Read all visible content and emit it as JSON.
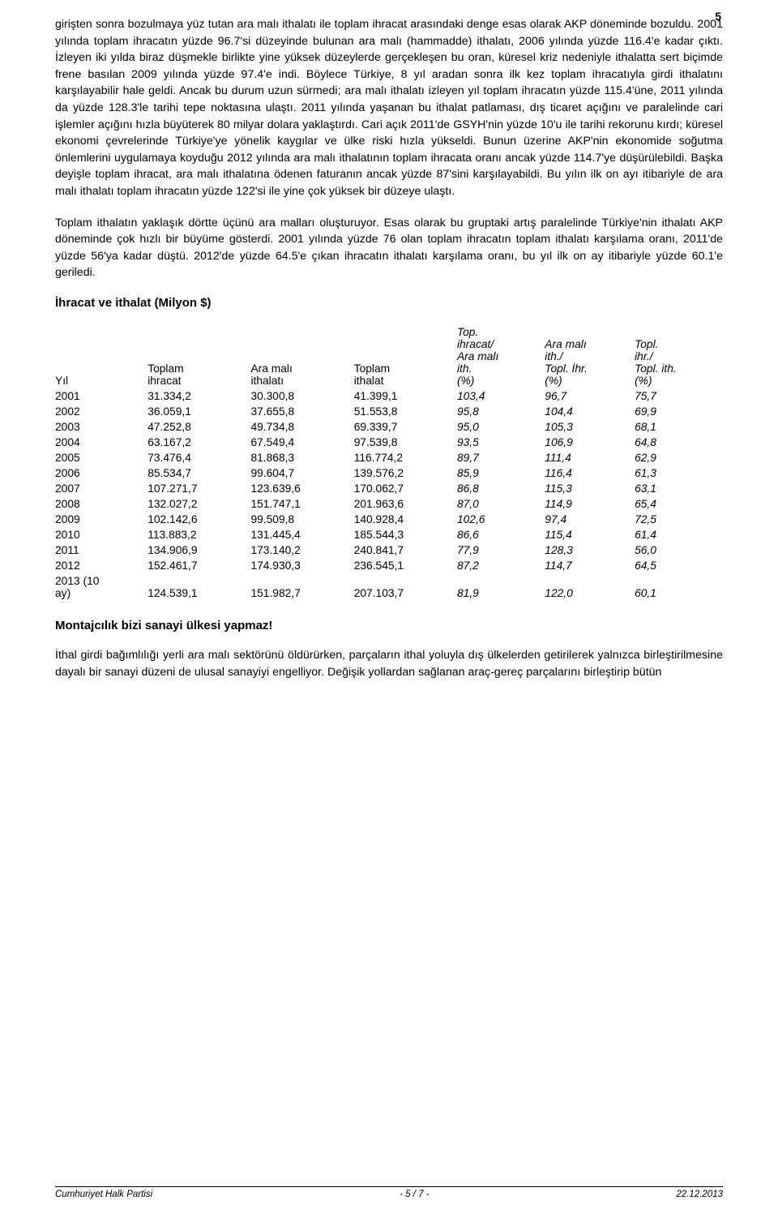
{
  "page_number": "5",
  "paragraphs": {
    "p1": "girişten sonra bozulmaya yüz tutan ara malı ithalatı ile toplam ihracat arasındaki denge esas olarak AKP döneminde bozuldu. 2001 yılında toplam ihracatın yüzde 96.7'si düzeyinde bulunan ara malı (hammadde) ithalatı, 2006 yılında yüzde 116.4'e kadar çıktı. İzleyen iki yılda biraz düşmekle birlikte yine yüksek düzeylerde gerçekleşen bu oran, küresel kriz nedeniyle ithalatta sert biçimde frene basılan 2009 yılında yüzde 97.4'e indi. Böylece Türkiye, 8 yıl aradan sonra ilk kez toplam ihracatıyla girdi ithalatını karşılayabilir hale geldi. Ancak bu durum uzun sürmedi; ara malı ithalatı izleyen yıl toplam ihracatın yüzde 115.4'üne, 2011 yılında da yüzde 128.3'le tarihi tepe noktasına ulaştı. 2011 yılında yaşanan bu ithalat patlaması, dış ticaret açığını ve paralelinde cari işlemler açığını hızla büyüterek 80 milyar dolara yaklaştırdı. Cari açık 2011'de GSYH'nin yüzde 10'u ile tarihi rekorunu kırdı; küresel ekonomi çevrelerinde Türkiye'ye yönelik kaygılar ve ülke riski hızla yükseldi. Bunun üzerine AKP'nin ekonomide soğutma önlemlerini uygulamaya koyduğu 2012 yılında ara malı ithalatının toplam ihracata oranı ancak yüzde 114.7'ye düşürülebildi. Başka deyişle toplam ihracat, ara malı ithalatına ödenen faturanın ancak yüzde 87'sini karşılayabildi. Bu yılın ilk on ayı itibariyle de ara malı ithalatı toplam ihracatın yüzde 122'si ile yine çok yüksek bir düzeye ulaştı.",
    "p2": "Toplam ithalatın yaklaşık dörtte üçünü ara malları oluşturuyor. Esas olarak bu gruptaki artış paralelinde Türkiye'nin ithalatı AKP döneminde çok hızlı bir büyüme gösterdi. 2001 yılında yüzde 76 olan toplam ihracatın toplam ithalatı karşılama oranı, 2011'de yüzde 56'ya kadar düştü. 2012'de yüzde 64.5'e çıkan ihracatın ithalatı karşılama oranı, bu yıl ilk on ay itibariyle yüzde 60.1'e geriledi.",
    "p4": "İthal girdi bağımlılığı yerli ara malı sektörünü öldürürken, parçaların ithal yoluyla dış ülkelerden getirilerek yalnızca birleştirilmesine dayalı bir sanayi düzeni de ulusal sanayiyi engelliyor. Değişik yollardan sağlanan araç-gereç parçalarını birleştirip bütün"
  },
  "table_title": "İhracat ve ithalat (Milyon $)",
  "subtitle": "Montajcılık bizi sanayi ülkesi yapmaz!",
  "table": {
    "headers": {
      "c0": "Yıl",
      "c1": "Toplam ihracat",
      "c2": "Ara malı ithalatı",
      "c3": "Toplam ithalat",
      "c4": "Top. ihracat/ Ara malı ith. (%)",
      "c5": "Ara malı ith./ Topl. İhr. (%)",
      "c6": "Topl. ihr./ Topl. ith. (%)"
    },
    "rows": [
      {
        "c0": "2001",
        "c1": "31.334,2",
        "c2": "30.300,8",
        "c3": "41.399,1",
        "c4": "103,4",
        "c5": "96,7",
        "c6": "75,7"
      },
      {
        "c0": "2002",
        "c1": "36.059,1",
        "c2": "37.655,8",
        "c3": "51.553,8",
        "c4": "95,8",
        "c5": "104,4",
        "c6": "69,9"
      },
      {
        "c0": "2003",
        "c1": "47.252,8",
        "c2": "49.734,8",
        "c3": "69.339,7",
        "c4": "95,0",
        "c5": "105,3",
        "c6": "68,1"
      },
      {
        "c0": "2004",
        "c1": "63.167,2",
        "c2": "67.549,4",
        "c3": "97.539,8",
        "c4": "93,5",
        "c5": "106,9",
        "c6": "64,8"
      },
      {
        "c0": "2005",
        "c1": "73.476,4",
        "c2": "81.868,3",
        "c3": "116.774,2",
        "c4": "89,7",
        "c5": "111,4",
        "c6": "62,9"
      },
      {
        "c0": "2006",
        "c1": "85.534,7",
        "c2": "99.604,7",
        "c3": "139.576,2",
        "c4": "85,9",
        "c5": "116,4",
        "c6": "61,3"
      },
      {
        "c0": "2007",
        "c1": "107.271,7",
        "c2": "123.639,6",
        "c3": "170.062,7",
        "c4": "86,8",
        "c5": "115,3",
        "c6": "63,1"
      },
      {
        "c0": "2008",
        "c1": "132.027,2",
        "c2": "151.747,1",
        "c3": "201.963,6",
        "c4": "87,0",
        "c5": "114,9",
        "c6": "65,4"
      },
      {
        "c0": "2009",
        "c1": "102.142,6",
        "c2": "99.509,8",
        "c3": "140.928,4",
        "c4": "102,6",
        "c5": "97,4",
        "c6": "72,5"
      },
      {
        "c0": "2010",
        "c1": "113.883,2",
        "c2": "131.445,4",
        "c3": "185.544,3",
        "c4": "86,6",
        "c5": "115,4",
        "c6": "61,4"
      },
      {
        "c0": "2011",
        "c1": "134.906,9",
        "c2": "173.140,2",
        "c3": "240.841,7",
        "c4": "77,9",
        "c5": "128,3",
        "c6": "56,0"
      },
      {
        "c0": "2012",
        "c1": "152.461,7",
        "c2": "174.930,3",
        "c3": "236.545,1",
        "c4": "87,2",
        "c5": "114,7",
        "c6": "64,5"
      },
      {
        "c0": "2013 (10 ay)",
        "c1": "124.539,1",
        "c2": "151.982,7",
        "c3": "207.103,7",
        "c4": "81,9",
        "c5": "122,0",
        "c6": "60,1"
      }
    ]
  },
  "footer": {
    "left": "Cumhuriyet Halk Partisi",
    "center": "- 5 / 7 -",
    "right": "22.12.2013"
  }
}
